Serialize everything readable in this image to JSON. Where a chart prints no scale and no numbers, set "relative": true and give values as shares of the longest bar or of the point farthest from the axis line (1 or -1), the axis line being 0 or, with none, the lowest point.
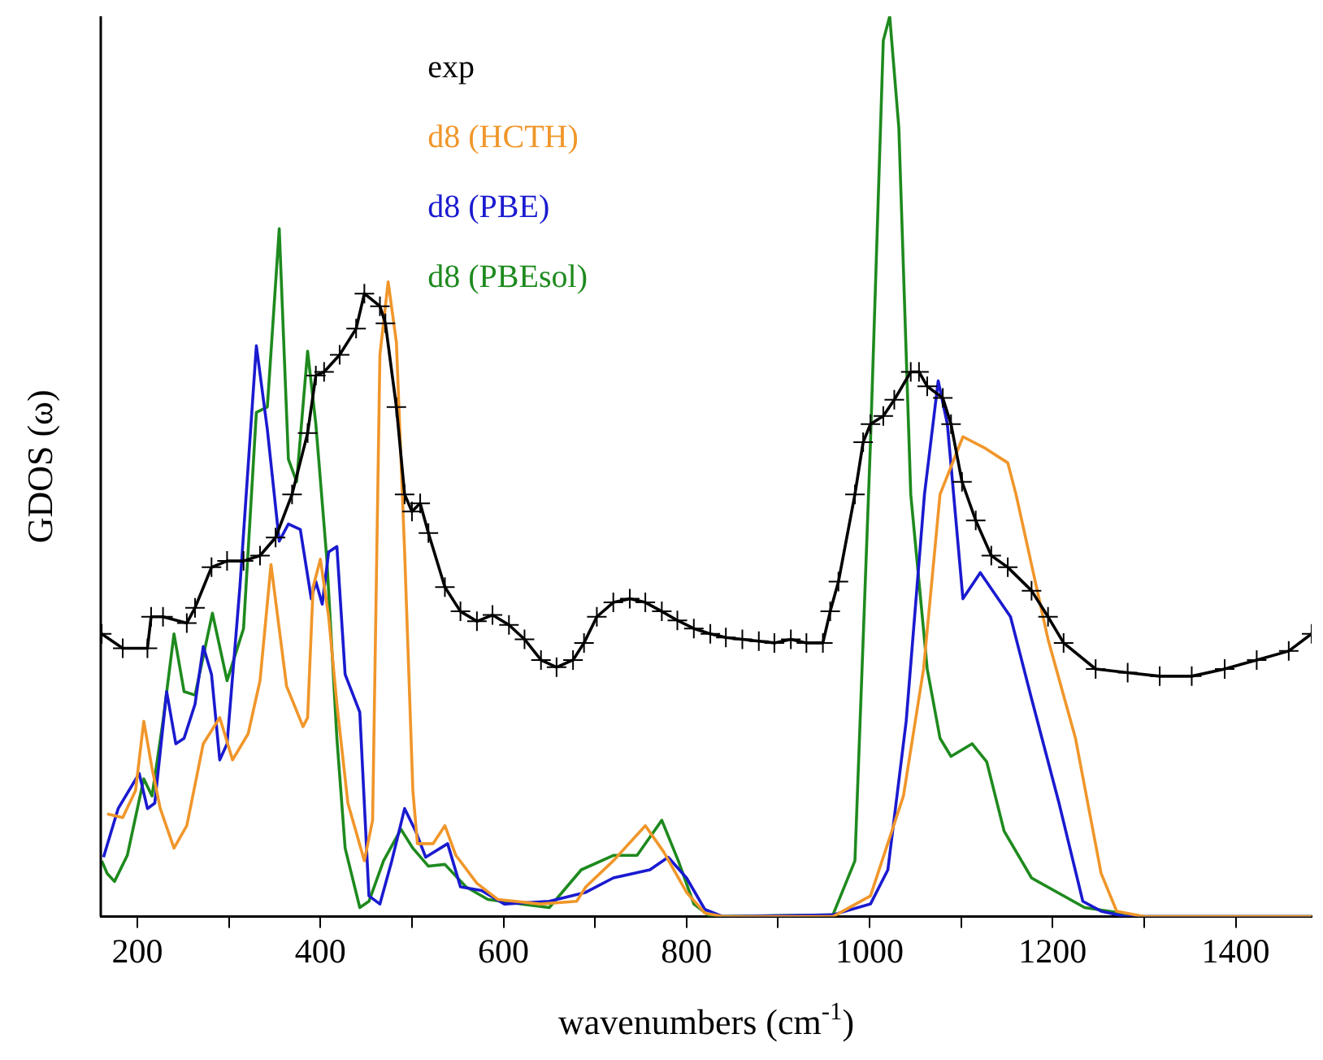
{
  "chart_data": {
    "type": "line",
    "relative": true,
    "xlabel": "wavenumbers (cm$^{-1}$)",
    "ylabel": "GDOS (ω)",
    "legend": "top left",
    "grid": false,
    "marker": "none",
    "line_style": "solid",
    "xlim": [
      160,
      1483
    ],
    "xticks": [
      200,
      {
        "value": 300,
        "label": null
      },
      400,
      {
        "value": 500,
        "label": null
      },
      600,
      {
        "value": 700,
        "label": null
      },
      800,
      {
        "value": 900,
        "label": null
      },
      1000,
      {
        "value": 1100,
        "label": null
      },
      1200,
      {
        "value": 1300,
        "label": null
      },
      1400
    ],
    "series": [
      {
        "name": "exp",
        "color": "#000000",
        "marker": "cross",
        "x": [
          161,
          184,
          211,
          215,
          228,
          254,
          263,
          281,
          298,
          316,
          334,
          351,
          369,
          386,
          395,
          404,
          421,
          439,
          448,
          465,
          471,
          483,
          492,
          500,
          509,
          518,
          536,
          553,
          571,
          588,
          606,
          623,
          641,
          658,
          676,
          688,
          702,
          720,
          738,
          755,
          773,
          790,
          808,
          826,
          843,
          861,
          879,
          896,
          914,
          931,
          949,
          957,
          966,
          984,
          993,
          1001,
          1015,
          1027,
          1045,
          1054,
          1063,
          1080,
          1089,
          1101,
          1116,
          1133,
          1151,
          1177,
          1195,
          1212,
          1247,
          1282,
          1317,
          1352,
          1388,
          1423,
          1458,
          1483
        ],
        "values": [
          0.314,
          0.298,
          0.298,
          0.333,
          0.333,
          0.326,
          0.343,
          0.388,
          0.395,
          0.395,
          0.401,
          0.421,
          0.469,
          0.537,
          0.601,
          0.605,
          0.624,
          0.653,
          0.692,
          0.678,
          0.659,
          0.566,
          0.469,
          0.45,
          0.459,
          0.426,
          0.366,
          0.339,
          0.328,
          0.335,
          0.324,
          0.308,
          0.285,
          0.277,
          0.285,
          0.304,
          0.333,
          0.349,
          0.353,
          0.349,
          0.339,
          0.329,
          0.32,
          0.314,
          0.31,
          0.308,
          0.306,
          0.304,
          0.308,
          0.304,
          0.304,
          0.339,
          0.372,
          0.469,
          0.527,
          0.547,
          0.556,
          0.574,
          0.605,
          0.605,
          0.589,
          0.576,
          0.547,
          0.483,
          0.44,
          0.401,
          0.388,
          0.362,
          0.333,
          0.304,
          0.275,
          0.271,
          0.267,
          0.267,
          0.275,
          0.285,
          0.295,
          0.314
        ]
      },
      {
        "name": "d8 (HCTH)",
        "color": "#f0962a",
        "x": [
          167,
          184,
          198,
          207,
          216,
          225,
          240,
          254,
          272,
          290,
          304,
          321,
          334,
          346,
          363,
          381,
          386,
          392,
          400,
          409,
          418,
          430,
          448,
          457,
          465,
          474,
          483,
          492,
          501,
          506,
          523,
          536,
          548,
          571,
          594,
          640,
          680,
          690,
          720,
          755,
          775,
          800,
          820,
          840,
          960,
          1001,
          1037,
          1059,
          1077,
          1102,
          1125,
          1151,
          1160,
          1195,
          1225,
          1253,
          1270,
          1300,
          1483
        ],
        "values": [
          0.114,
          0.11,
          0.14,
          0.217,
          0.165,
          0.12,
          0.076,
          0.101,
          0.192,
          0.221,
          0.174,
          0.203,
          0.262,
          0.391,
          0.256,
          0.211,
          0.221,
          0.366,
          0.397,
          0.333,
          0.236,
          0.126,
          0.062,
          0.107,
          0.624,
          0.705,
          0.638,
          0.405,
          0.14,
          0.081,
          0.081,
          0.101,
          0.068,
          0.037,
          0.019,
          0.014,
          0.017,
          0.033,
          0.062,
          0.101,
          0.072,
          0.027,
          0.004,
          0,
          0,
          0.023,
          0.134,
          0.275,
          0.469,
          0.533,
          0.521,
          0.504,
          0.469,
          0.308,
          0.198,
          0.048,
          0.006,
          0,
          0
        ]
      },
      {
        "name": "d8 (PBE)",
        "color": "#1a1ad0",
        "x": [
          163,
          179,
          202,
          211,
          219,
          232,
          242,
          251,
          263,
          272,
          281,
          290,
          298,
          312,
          330,
          342,
          355,
          365,
          378,
          390,
          395,
          402,
          409,
          418,
          427,
          443,
          453,
          465,
          478,
          492,
          504,
          515,
          539,
          553,
          576,
          601,
          650,
          690,
          720,
          760,
          780,
          800,
          820,
          840,
          960,
          1001,
          1020,
          1040,
          1060,
          1075,
          1085,
          1102,
          1121,
          1154,
          1177,
          1207,
          1233,
          1253,
          1280,
          1483
        ],
        "values": [
          0.066,
          0.12,
          0.159,
          0.12,
          0.126,
          0.25,
          0.192,
          0.198,
          0.236,
          0.3,
          0.269,
          0.174,
          0.192,
          0.366,
          0.634,
          0.541,
          0.417,
          0.436,
          0.43,
          0.353,
          0.372,
          0.347,
          0.405,
          0.411,
          0.269,
          0.227,
          0.023,
          0.014,
          0.062,
          0.12,
          0.095,
          0.066,
          0.081,
          0.033,
          0.029,
          0.014,
          0.017,
          0.027,
          0.043,
          0.052,
          0.066,
          0.043,
          0.008,
          0,
          0.002,
          0.014,
          0.052,
          0.217,
          0.469,
          0.595,
          0.547,
          0.353,
          0.382,
          0.333,
          0.242,
          0.126,
          0.017,
          0.006,
          0,
          0
        ]
      },
      {
        "name": "d8 (PBEsol)",
        "color": "#1e8a1e",
        "x": [
          161,
          167,
          175,
          189,
          207,
          216,
          228,
          240,
          251,
          263,
          282,
          298,
          316,
          330,
          342,
          355,
          365,
          374,
          386,
          395,
          407,
          418,
          427,
          443,
          453,
          469,
          488,
          501,
          518,
          536,
          559,
          583,
          620,
          650,
          685,
          720,
          746,
          773,
          791,
          808,
          826,
          960,
          984,
          1001,
          1015,
          1022,
          1032,
          1045,
          1063,
          1077,
          1089,
          1112,
          1128,
          1147,
          1177,
          1235,
          1300,
          1483
        ],
        "values": [
          0.062,
          0.048,
          0.039,
          0.068,
          0.153,
          0.134,
          0.217,
          0.314,
          0.25,
          0.246,
          0.337,
          0.262,
          0.32,
          0.56,
          0.566,
          0.764,
          0.508,
          0.483,
          0.628,
          0.547,
          0.397,
          0.198,
          0.076,
          0.01,
          0.017,
          0.062,
          0.097,
          0.076,
          0.056,
          0.058,
          0.033,
          0.019,
          0.014,
          0.01,
          0.052,
          0.068,
          0.068,
          0.107,
          0.062,
          0.014,
          0,
          0.002,
          0.062,
          0.527,
          0.973,
          1,
          0.876,
          0.469,
          0.275,
          0.198,
          0.178,
          0.192,
          0.172,
          0.095,
          0.043,
          0.01,
          0,
          0
        ]
      }
    ]
  }
}
